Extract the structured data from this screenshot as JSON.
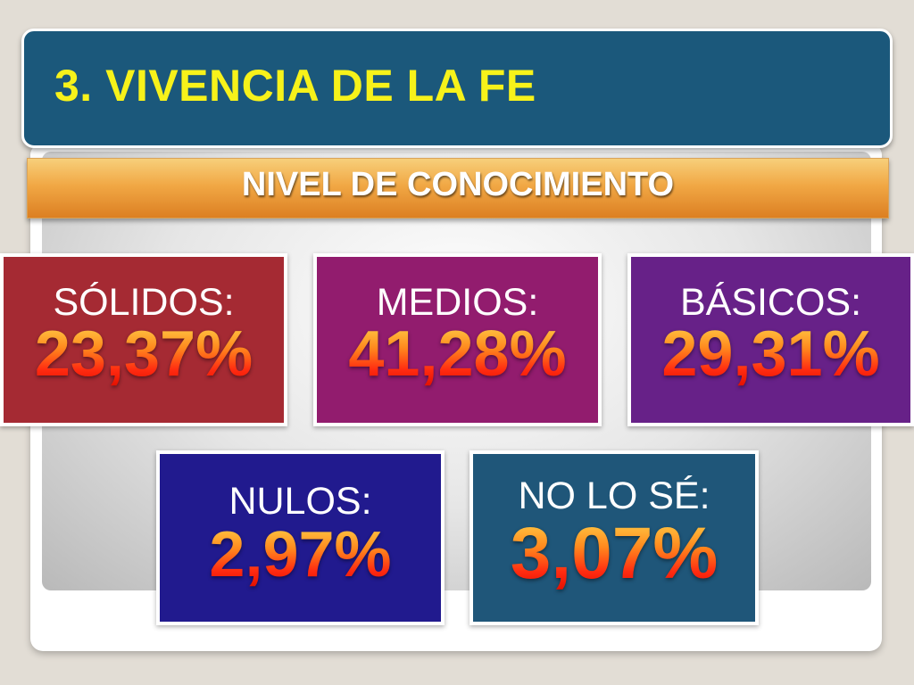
{
  "header": {
    "title": "3. VIVENCIA DE LA FE"
  },
  "subtitle": "NIVEL DE CONOCIMIENTO",
  "cards": [
    {
      "label": "SÓLIDOS:",
      "value": "23,37%",
      "color": "#a52a33"
    },
    {
      "label": "MEDIOS:",
      "value": "41,28%",
      "color": "#921c6e"
    },
    {
      "label": "BÁSICOS:",
      "value": "29,31%",
      "color": "#672188"
    },
    {
      "label": "NULOS:",
      "value": "2,97%",
      "color": "#211a8e"
    },
    {
      "label": "NO LO SÉ:",
      "value": "3,07%",
      "color": "#1f5679"
    }
  ],
  "colors": {
    "header_bg": "#1b587b",
    "title_text": "#f7f21a",
    "subtitle_bar": "#f1a845",
    "value_gradient_top": "#ffd24a",
    "value_gradient_bottom": "#e21000"
  }
}
